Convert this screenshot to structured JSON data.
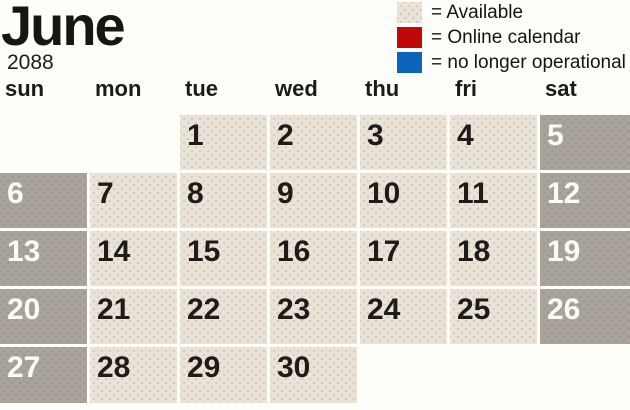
{
  "title": {
    "month": "June",
    "year": "2088"
  },
  "legend": {
    "items": [
      {
        "name": "available",
        "symbol_color": "#eae3d8",
        "label": "= Available"
      },
      {
        "name": "online-calendar",
        "symbol_color": "#c10809",
        "label": "= Online calendar"
      },
      {
        "name": "no-longer-operational",
        "symbol_color": "#0d65bb",
        "label": "= no longer operational"
      }
    ]
  },
  "weekday_headers": [
    "sun",
    "mon",
    "tue",
    "wed",
    "thu",
    "fri",
    "sat"
  ],
  "calendar": {
    "weeks": [
      [
        "",
        "",
        "1",
        "2",
        "3",
        "4",
        "5"
      ],
      [
        "6",
        "7",
        "8",
        "9",
        "10",
        "11",
        "12"
      ],
      [
        "13",
        "14",
        "15",
        "16",
        "17",
        "18",
        "19"
      ],
      [
        "20",
        "21",
        "22",
        "23",
        "24",
        "25",
        "26"
      ],
      [
        "27",
        "28",
        "29",
        "30",
        "",
        "",
        ""
      ]
    ]
  },
  "colors": {
    "available_cell": "#eae3d8",
    "weekend_cell": "#a8a39b",
    "legend_red": "#c10809",
    "legend_blue": "#0d65bb",
    "day_number_dark": "#1d1c19",
    "day_number_light": "#fbfaf5"
  }
}
